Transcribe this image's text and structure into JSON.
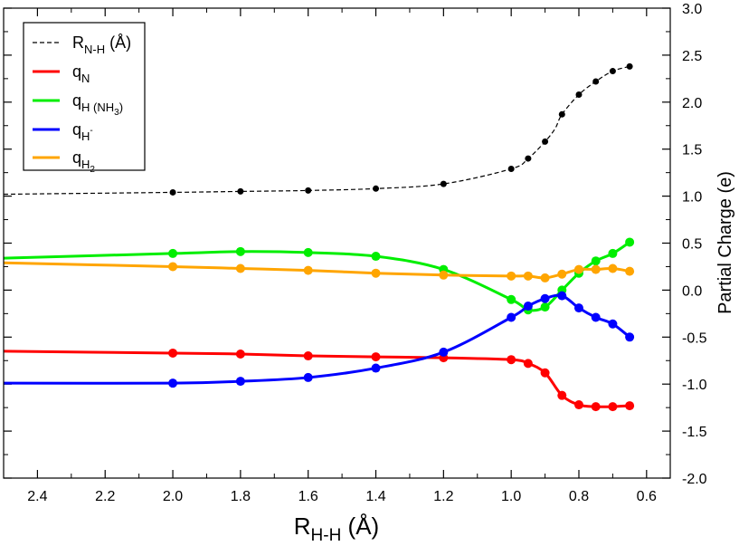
{
  "chart_data": {
    "type": "line",
    "title": "",
    "xlabel": "R",
    "xlabel_sub": "H-H",
    "xlabel_unit": " (Å)",
    "ylabel_right": "Partial Charge (e)",
    "xlim": [
      2.5,
      0.53
    ],
    "ylim": [
      -2.0,
      3.0
    ],
    "x_reversed": true,
    "x_ticks": [
      2.4,
      2.2,
      2.0,
      1.8,
      1.6,
      1.4,
      1.2,
      1.0,
      0.8,
      0.6
    ],
    "x_tick_labels": [
      "2.4",
      "2.2",
      "2.0",
      "1.8",
      "1.6",
      "1.4",
      "1.2",
      "1.0",
      "0.8",
      "0.6"
    ],
    "y_ticks": [
      -2.0,
      -1.5,
      -1.0,
      -0.5,
      0.0,
      0.5,
      1.0,
      1.5,
      2.0,
      2.5,
      3.0
    ],
    "y_tick_labels": [
      "-2.0",
      "-1.5",
      "-1.0",
      "-0.5",
      "0.0",
      "0.5",
      "1.0",
      "1.5",
      "2.0",
      "2.5",
      "3.0"
    ],
    "legend_position": "top-left",
    "series": [
      {
        "name": "R_N-H (Å)",
        "legend": {
          "main": "R",
          "sub": "N-H",
          "suffix": " (Å)",
          "sub2": "",
          "sub2_after": ""
        },
        "color": "#000000",
        "dashed": true,
        "curve_x": [
          2.5,
          2.0,
          1.8,
          1.6,
          1.4,
          1.2,
          1.0,
          0.95,
          0.9,
          0.87,
          0.85,
          0.8,
          0.75,
          0.7,
          0.65
        ],
        "curve_y": [
          1.02,
          1.04,
          1.05,
          1.06,
          1.08,
          1.13,
          1.29,
          1.4,
          1.58,
          1.72,
          1.87,
          2.08,
          2.22,
          2.33,
          2.38
        ],
        "points_x": [
          2.0,
          1.8,
          1.6,
          1.4,
          1.2,
          1.0,
          0.95,
          0.9,
          0.85,
          0.8,
          0.75,
          0.7,
          0.65
        ],
        "points_y": [
          1.04,
          1.05,
          1.06,
          1.08,
          1.13,
          1.29,
          1.4,
          1.58,
          1.87,
          2.08,
          2.22,
          2.33,
          2.38
        ]
      },
      {
        "name": "q_N",
        "legend": {
          "main": "q",
          "sub": "N",
          "suffix": "",
          "sub2": "",
          "sub2_after": ""
        },
        "color": "#ff0000",
        "dashed": false,
        "curve_x": [
          2.5,
          2.0,
          1.8,
          1.6,
          1.4,
          1.2,
          1.0,
          0.95,
          0.9,
          0.85,
          0.8,
          0.75,
          0.7,
          0.65
        ],
        "curve_y": [
          -0.65,
          -0.67,
          -0.68,
          -0.7,
          -0.71,
          -0.72,
          -0.74,
          -0.78,
          -0.88,
          -1.12,
          -1.22,
          -1.24,
          -1.24,
          -1.23
        ],
        "points_x": [
          2.0,
          1.8,
          1.6,
          1.4,
          1.2,
          1.0,
          0.95,
          0.9,
          0.85,
          0.8,
          0.75,
          0.7,
          0.65
        ],
        "points_y": [
          -0.67,
          -0.68,
          -0.7,
          -0.71,
          -0.72,
          -0.74,
          -0.78,
          -0.88,
          -1.12,
          -1.22,
          -1.24,
          -1.24,
          -1.23
        ]
      },
      {
        "name": "q_H (NH3)",
        "legend": {
          "main": "q",
          "sub": "H (NH",
          "suffix": "",
          "sub2": "3",
          "sub2_after": ")"
        },
        "color": "#00ee00",
        "dashed": false,
        "curve_x": [
          2.5,
          2.0,
          1.8,
          1.6,
          1.4,
          1.2,
          1.0,
          0.95,
          0.9,
          0.85,
          0.8,
          0.75,
          0.7,
          0.65
        ],
        "curve_y": [
          0.34,
          0.39,
          0.41,
          0.4,
          0.36,
          0.22,
          -0.1,
          -0.21,
          -0.18,
          0.0,
          0.18,
          0.31,
          0.39,
          0.51
        ],
        "points_x": [
          2.0,
          1.8,
          1.6,
          1.4,
          1.2,
          1.0,
          0.95,
          0.9,
          0.85,
          0.8,
          0.75,
          0.7,
          0.65
        ],
        "points_y": [
          0.39,
          0.41,
          0.4,
          0.36,
          0.22,
          -0.1,
          -0.21,
          -0.18,
          0.0,
          0.18,
          0.31,
          0.39,
          0.51
        ]
      },
      {
        "name": "q_H-",
        "legend": {
          "main": "q",
          "sub": "H",
          "suffix": "",
          "sub2": "",
          "sub2_after": "",
          "sup": "-"
        },
        "color": "#0000ff",
        "dashed": false,
        "curve_x": [
          2.5,
          2.0,
          1.8,
          1.6,
          1.4,
          1.2,
          1.0,
          0.95,
          0.9,
          0.85,
          0.8,
          0.75,
          0.7,
          0.65
        ],
        "curve_y": [
          -0.99,
          -0.99,
          -0.97,
          -0.93,
          -0.83,
          -0.66,
          -0.29,
          -0.17,
          -0.09,
          -0.06,
          -0.19,
          -0.29,
          -0.36,
          -0.5
        ],
        "points_x": [
          2.0,
          1.8,
          1.6,
          1.4,
          1.2,
          1.0,
          0.95,
          0.9,
          0.85,
          0.8,
          0.75,
          0.7,
          0.65
        ],
        "points_y": [
          -0.99,
          -0.97,
          -0.93,
          -0.83,
          -0.66,
          -0.29,
          -0.17,
          -0.09,
          -0.06,
          -0.19,
          -0.29,
          -0.36,
          -0.5
        ]
      },
      {
        "name": "q_H2",
        "legend": {
          "main": "q",
          "sub": "H",
          "suffix": "",
          "sub2": "2",
          "sub2_after": ""
        },
        "color": "#ffa500",
        "dashed": false,
        "curve_x": [
          2.5,
          2.0,
          1.8,
          1.6,
          1.4,
          1.2,
          1.0,
          0.95,
          0.9,
          0.85,
          0.8,
          0.75,
          0.7,
          0.65
        ],
        "curve_y": [
          0.29,
          0.25,
          0.23,
          0.21,
          0.18,
          0.16,
          0.15,
          0.15,
          0.13,
          0.17,
          0.22,
          0.22,
          0.23,
          0.2
        ],
        "points_x": [
          2.0,
          1.8,
          1.6,
          1.4,
          1.2,
          1.0,
          0.95,
          0.9,
          0.85,
          0.8,
          0.75,
          0.7,
          0.65
        ],
        "points_y": [
          0.25,
          0.23,
          0.21,
          0.18,
          0.16,
          0.15,
          0.15,
          0.13,
          0.17,
          0.22,
          0.22,
          0.23,
          0.2
        ]
      }
    ]
  }
}
